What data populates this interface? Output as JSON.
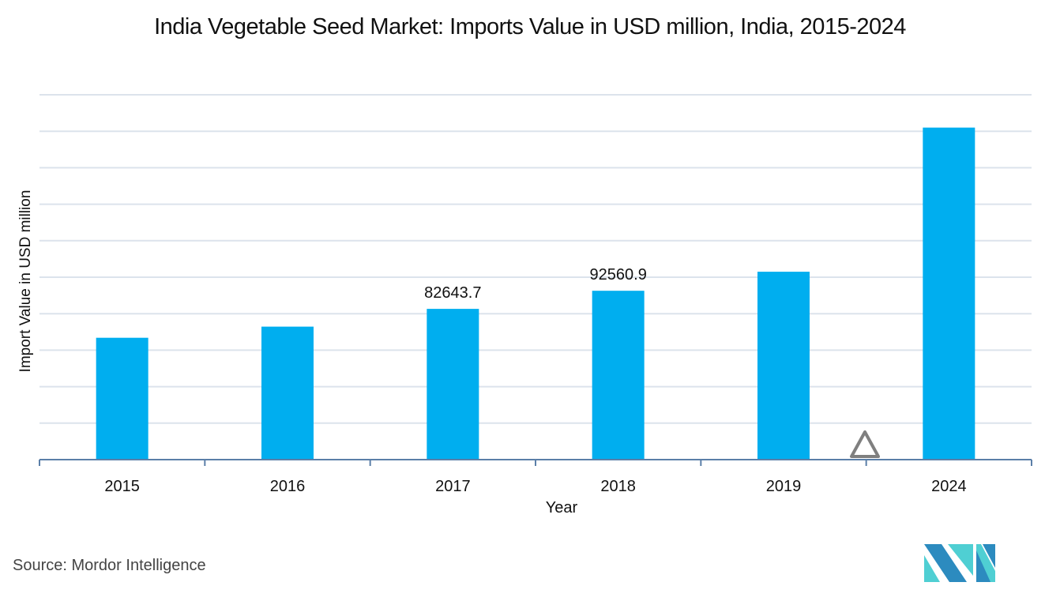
{
  "chart_data": {
    "type": "bar",
    "title": "India Vegetable Seed Market: Imports Value in USD million, India, 2015-2024",
    "xlabel": "Year",
    "ylabel": "Import Value in USD million",
    "categories": [
      "2015",
      "2016",
      "2017",
      "2018",
      "2019",
      "2024"
    ],
    "values": [
      66800,
      72900,
      82643.7,
      92560.9,
      103000,
      182000
    ],
    "data_labels": [
      null,
      null,
      "82643.7",
      "92560.9",
      null,
      null
    ],
    "ylim": [
      0,
      200000
    ],
    "y_gridlines": 10,
    "grid": true,
    "y_tick_labels_visible": false,
    "bar_color": "#00AEEF",
    "annotation": "triangle marker between 2019 and 2024 (axis break)"
  },
  "source": "Source: Mordor Intelligence",
  "colors": {
    "bar": "#00AEEF",
    "grid": "#DCE3EC",
    "axis": "#5B7FA8",
    "triangle": "#7F7F7F",
    "logo_dark": "#2C8BBF",
    "logo_light": "#4FCFD3"
  }
}
